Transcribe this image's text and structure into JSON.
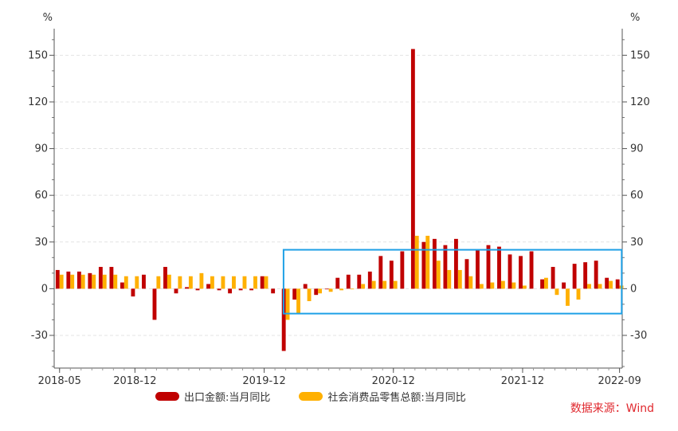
{
  "chart_data": {
    "type": "bar",
    "ylabel_left": "%",
    "ylabel_right": "%",
    "ylim": [
      -51,
      164
    ],
    "y_ticks": [
      -30,
      0,
      30,
      60,
      90,
      120,
      150
    ],
    "x_tick_labels": [
      {
        "index": 0,
        "label": "2018-05"
      },
      {
        "index": 7,
        "label": "2018-12"
      },
      {
        "index": 19,
        "label": "2019-12"
      },
      {
        "index": 31,
        "label": "2020-12"
      },
      {
        "index": 43,
        "label": "2021-12"
      },
      {
        "index": 52,
        "label": "2022-09"
      }
    ],
    "series": [
      {
        "name": "出口金额:当月同比",
        "color": "#C00000",
        "values": [
          12,
          11,
          11,
          10,
          14,
          14,
          4,
          -5,
          9,
          -20,
          14,
          -3,
          1,
          -1,
          3,
          -1,
          -3,
          -1,
          -1,
          8,
          -3,
          -40,
          -7,
          3,
          -4,
          0,
          7,
          9,
          9,
          11,
          21,
          18,
          24,
          154,
          30,
          32,
          28,
          32,
          19,
          25,
          28,
          27,
          22,
          21,
          24,
          6,
          14,
          4,
          16,
          17,
          18,
          7,
          6
        ]
      },
      {
        "name": "社会消费品零售总额:当月同比",
        "color": "#FFB000",
        "values": [
          9,
          9,
          9,
          9,
          9,
          9,
          8,
          8,
          null,
          8,
          9,
          8,
          8,
          10,
          8,
          8,
          8,
          8,
          8,
          8,
          null,
          -20,
          -16,
          -8,
          -3,
          -2,
          -1,
          0,
          3,
          5,
          5,
          5,
          null,
          34,
          34,
          18,
          12,
          12,
          8,
          3,
          4,
          5,
          4,
          2,
          null,
          7,
          -4,
          -11,
          -7,
          3,
          3,
          5,
          2
        ]
      }
    ],
    "highlight_box": {
      "index_start": 21.3,
      "index_end": 52.7,
      "y_top": 25,
      "y_bottom": -16,
      "color": "#1EA0E6"
    }
  },
  "legend": [
    {
      "label": "出口金额:当月同比",
      "color": "#C00000"
    },
    {
      "label": "社会消费品零售总额:当月同比",
      "color": "#FFB000"
    }
  ],
  "source": {
    "text": "数据来源：Wind",
    "color": "#E0282E"
  }
}
